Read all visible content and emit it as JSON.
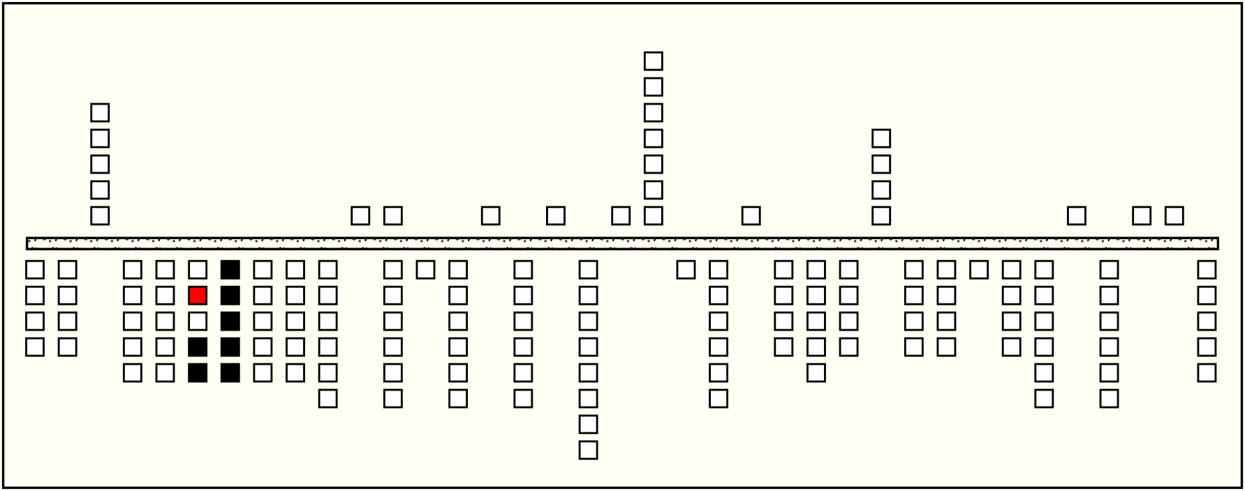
{
  "columns": [
    {
      "up": 0,
      "down": [
        "empty",
        "empty",
        "empty",
        "empty"
      ]
    },
    {
      "up": 0,
      "down": [
        "empty",
        "empty",
        "empty",
        "empty"
      ]
    },
    {
      "up": 5,
      "down": []
    },
    {
      "up": 0,
      "down": [
        "empty",
        "empty",
        "empty",
        "empty",
        "empty"
      ]
    },
    {
      "up": 0,
      "down": [
        "empty",
        "empty",
        "empty",
        "empty",
        "empty"
      ]
    },
    {
      "up": 0,
      "down": [
        "empty",
        "red",
        "empty",
        "black",
        "black"
      ]
    },
    {
      "up": 0,
      "down": [
        "black",
        "black",
        "black",
        "black",
        "black"
      ]
    },
    {
      "up": 0,
      "down": [
        "empty",
        "empty",
        "empty",
        "empty",
        "empty"
      ]
    },
    {
      "up": 0,
      "down": [
        "empty",
        "empty",
        "empty",
        "empty",
        "empty"
      ]
    },
    {
      "up": 0,
      "down": [
        "empty",
        "empty",
        "empty",
        "empty",
        "empty",
        "empty"
      ]
    },
    {
      "up": 1,
      "down": []
    },
    {
      "up": 1,
      "down": [
        "empty",
        "empty",
        "empty",
        "empty",
        "empty",
        "empty"
      ]
    },
    {
      "up": 0,
      "down": [
        "empty"
      ]
    },
    {
      "up": 0,
      "down": [
        "empty",
        "empty",
        "empty",
        "empty",
        "empty",
        "empty"
      ]
    },
    {
      "up": 1,
      "down": []
    },
    {
      "up": 0,
      "down": [
        "empty",
        "empty",
        "empty",
        "empty",
        "empty",
        "empty"
      ]
    },
    {
      "up": 1,
      "down": []
    },
    {
      "up": 0,
      "down": [
        "empty",
        "empty",
        "empty",
        "empty",
        "empty",
        "empty",
        "empty",
        "empty"
      ]
    },
    {
      "up": 1,
      "down": []
    },
    {
      "up": 7,
      "down": []
    },
    {
      "up": 0,
      "down": [
        "empty"
      ]
    },
    {
      "up": 0,
      "down": [
        "empty",
        "empty",
        "empty",
        "empty",
        "empty",
        "empty"
      ]
    },
    {
      "up": 1,
      "down": []
    },
    {
      "up": 0,
      "down": [
        "empty",
        "empty",
        "empty",
        "empty"
      ]
    },
    {
      "up": 0,
      "down": [
        "empty",
        "empty",
        "empty",
        "empty",
        "empty"
      ]
    },
    {
      "up": 0,
      "down": [
        "empty",
        "empty",
        "empty",
        "empty"
      ]
    },
    {
      "up": 4,
      "down": []
    },
    {
      "up": 0,
      "down": [
        "empty",
        "empty",
        "empty",
        "empty"
      ]
    },
    {
      "up": 0,
      "down": [
        "empty",
        "empty",
        "empty",
        "empty"
      ]
    },
    {
      "up": 0,
      "down": [
        "empty"
      ]
    },
    {
      "up": 0,
      "down": [
        "empty",
        "empty",
        "empty",
        "empty"
      ]
    },
    {
      "up": 0,
      "down": [
        "empty",
        "empty",
        "empty",
        "empty",
        "empty",
        "empty"
      ]
    },
    {
      "up": 1,
      "down": []
    },
    {
      "up": 0,
      "down": [
        "empty",
        "empty",
        "empty",
        "empty",
        "empty",
        "empty"
      ]
    },
    {
      "up": 1,
      "down": []
    },
    {
      "up": 1,
      "down": []
    },
    {
      "up": 0,
      "down": [
        "empty",
        "empty",
        "empty",
        "empty",
        "empty"
      ]
    }
  ]
}
